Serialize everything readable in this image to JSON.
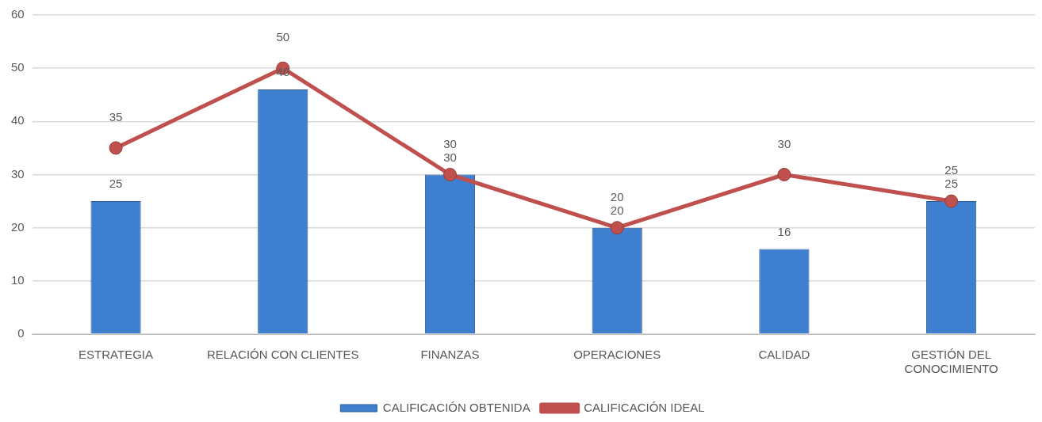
{
  "chart_data": {
    "type": "bar",
    "categories": [
      "ESTRATEGIA",
      "RELACIÓN CON CLIENTES",
      "FINANZAS",
      "OPERACIONES",
      "CALIDAD",
      "GESTIÓN DEL CONOCIMIENTO"
    ],
    "series": [
      {
        "name": "CALIFICACIÓN OBTENIDA",
        "color": "#3f7fcf",
        "values": [
          25,
          46,
          30,
          20,
          16,
          25
        ]
      },
      {
        "name": "CALIFICACIÓN IDEAL",
        "type": "line",
        "color": "#c0504d",
        "values": [
          35,
          50,
          30,
          20,
          30,
          25
        ]
      }
    ],
    "ylim": [
      0,
      60
    ],
    "yticks": [
      0,
      10,
      20,
      30,
      40,
      50,
      60
    ],
    "grid": "y",
    "legend": "bottom",
    "data_labels": true,
    "marker": "circle",
    "line_style": "solid"
  }
}
